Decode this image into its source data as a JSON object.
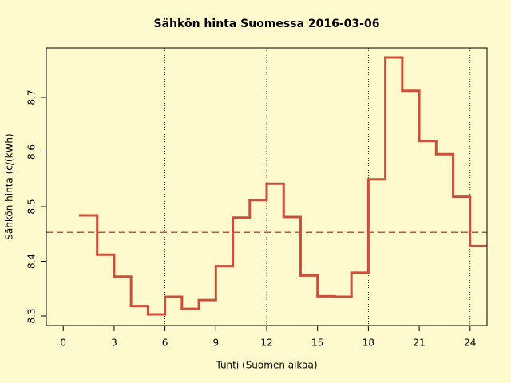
{
  "chart_data": {
    "type": "step",
    "title": "Sähkön hinta Suomessa 2016-03-06",
    "x_label": "Tunti (Suomen aikaa)",
    "y_label": "Sähkön hinta (c/(kWh)",
    "x": [
      1,
      2,
      3,
      4,
      5,
      6,
      7,
      8,
      9,
      10,
      11,
      12,
      13,
      14,
      15,
      16,
      17,
      18,
      19,
      20,
      21,
      22,
      23,
      24
    ],
    "values": [
      8.484,
      8.412,
      8.372,
      8.318,
      8.303,
      8.335,
      8.313,
      8.329,
      8.391,
      8.48,
      8.512,
      8.542,
      8.481,
      8.374,
      8.336,
      8.335,
      8.379,
      8.55,
      8.773,
      8.712,
      8.62,
      8.596,
      8.518,
      8.428
    ],
    "color": "#cd4f39",
    "reference_line": 8.453,
    "xlim": [
      -1,
      25
    ],
    "xticks": [
      0,
      3,
      6,
      9,
      12,
      15,
      18,
      21,
      24
    ],
    "ylim": [
      8.2825,
      8.7905
    ],
    "yticks": [
      8.3,
      8.4,
      8.5,
      8.6,
      8.7
    ],
    "vlines": [
      6,
      12,
      18,
      24
    ]
  }
}
